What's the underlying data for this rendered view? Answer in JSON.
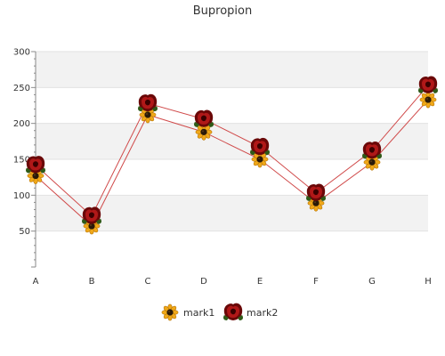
{
  "chart_data": {
    "type": "line",
    "title": "Bupropion",
    "xlabel": "",
    "ylabel": "",
    "categories": [
      "A",
      "B",
      "C",
      "D",
      "E",
      "F",
      "G",
      "H"
    ],
    "ylim": [
      0,
      300
    ],
    "yticks": [
      50,
      100,
      150,
      200,
      250,
      300
    ],
    "grid": true,
    "legend_position": "bottom",
    "series": [
      {
        "name": "mark1",
        "values": [
          127,
          57,
          212,
          188,
          150,
          89,
          146,
          233
        ],
        "marker": "sunflower-icon",
        "color": "#e8a21a"
      },
      {
        "name": "mark2",
        "values": [
          142,
          71,
          228,
          206,
          167,
          103,
          162,
          253
        ],
        "marker": "rose-icon",
        "color": "#a01010"
      }
    ],
    "line_color": "#d04a4a",
    "band_color": "#f2f2f2"
  }
}
